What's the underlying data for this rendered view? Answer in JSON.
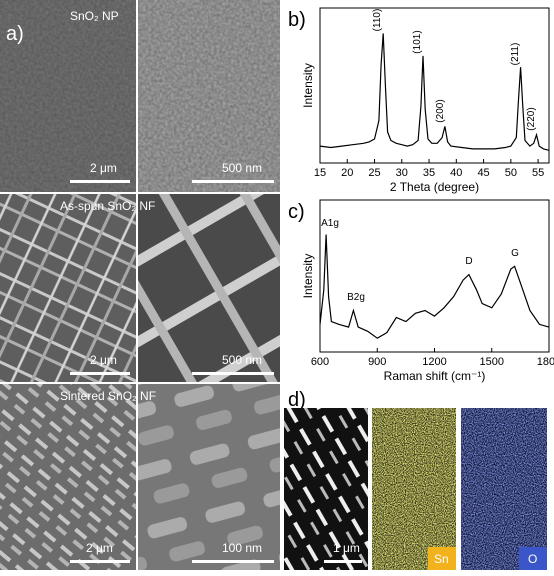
{
  "panel_a": {
    "label": "a)",
    "rows": [
      {
        "caption": "SnO₂ NP",
        "scale_left": "2 μm",
        "scale_right": "500 nm"
      },
      {
        "caption": "As-spun SnO₂ NF",
        "scale_left": "2 μm",
        "scale_right": "500 nm"
      },
      {
        "caption": "Sintered SnO₂ NF",
        "scale_left": "2 μm",
        "scale_right": "100 nm"
      }
    ]
  },
  "chart_data": [
    {
      "type": "line",
      "label": "b)",
      "ylabel": "Intensity",
      "xlabel": "2 Theta (degree)",
      "color": "#000000",
      "xlim": [
        15,
        57
      ],
      "xticks": [
        15,
        20,
        25,
        30,
        35,
        40,
        45,
        50,
        55
      ],
      "ylim": [
        0,
        110
      ],
      "x": [
        15,
        17,
        19,
        21,
        23,
        24,
        25,
        25.8,
        26.2,
        26.6,
        27.0,
        27.4,
        28,
        29,
        30,
        31,
        32,
        33,
        33.5,
        33.9,
        34.3,
        34.8,
        35.5,
        36.5,
        37.4,
        37.9,
        38.4,
        39,
        41,
        43,
        45,
        47,
        49,
        50,
        51,
        51.4,
        51.8,
        52.2,
        52.6,
        53.5,
        54.2,
        54.7,
        55.2,
        56,
        57
      ],
      "values": [
        12,
        11,
        12,
        13,
        14,
        15,
        17,
        30,
        70,
        92,
        55,
        22,
        16,
        14,
        13,
        12,
        13,
        16,
        40,
        76,
        38,
        17,
        14,
        14,
        18,
        26,
        15,
        12,
        11,
        10,
        10,
        10,
        11,
        12,
        18,
        45,
        68,
        40,
        16,
        12,
        14,
        20,
        12,
        10,
        9
      ],
      "annotations": [
        "(110)",
        "(101)",
        "(200)",
        "(211)",
        "(220)"
      ]
    },
    {
      "type": "line",
      "label": "c)",
      "ylabel": "Intensity",
      "xlabel": "Raman shift (cm⁻¹)",
      "color": "#000000",
      "xlim": [
        600,
        1800
      ],
      "xticks": [
        600,
        900,
        1200,
        1500,
        1800
      ],
      "ylim": [
        0,
        110
      ],
      "x": [
        600,
        620,
        632,
        645,
        660,
        700,
        750,
        775,
        800,
        850,
        900,
        950,
        1000,
        1050,
        1100,
        1150,
        1200,
        1250,
        1300,
        1350,
        1380,
        1420,
        1450,
        1500,
        1550,
        1600,
        1620,
        1650,
        1700,
        1750,
        1800
      ],
      "values": [
        20,
        45,
        85,
        40,
        22,
        20,
        18,
        30,
        18,
        15,
        10,
        14,
        25,
        22,
        28,
        30,
        26,
        32,
        40,
        52,
        56,
        45,
        35,
        32,
        42,
        60,
        62,
        50,
        30,
        20,
        18
      ],
      "annotations": [
        "A1g",
        "B2g",
        "D",
        "G"
      ]
    }
  ],
  "panel_d": {
    "label": "d)",
    "scale": "1 μm",
    "maps": [
      "Sn",
      "O"
    ]
  }
}
